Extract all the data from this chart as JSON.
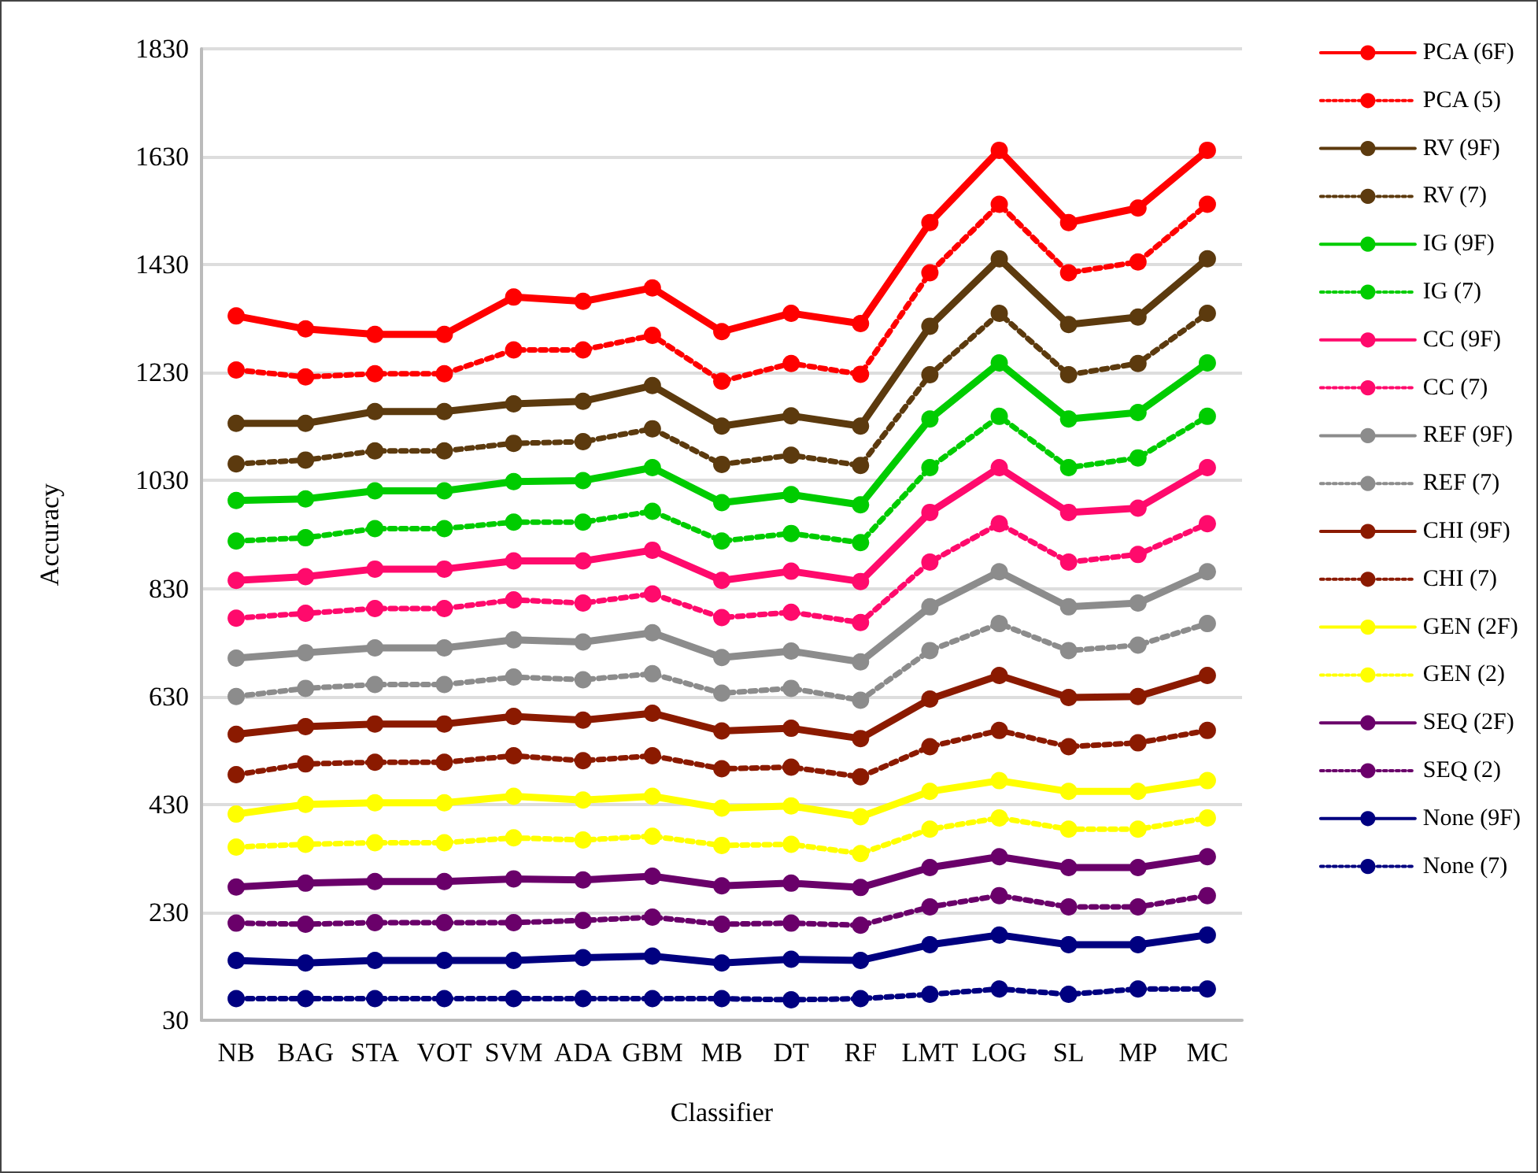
{
  "chart_data": {
    "type": "line",
    "xlabel": "Classifier",
    "ylabel": "Accuracy",
    "categories": [
      "NB",
      "BAG",
      "STA",
      "VOT",
      "SVM",
      "ADA",
      "GBM",
      "MB",
      "DT",
      "RF",
      "LMT",
      "LOG",
      "SL",
      "MP",
      "MC"
    ],
    "ylim": [
      30,
      1830
    ],
    "yticks": [
      30,
      230,
      430,
      630,
      830,
      1030,
      1230,
      1430,
      1630,
      1830
    ],
    "grid": "y",
    "legend": "right",
    "marker": "circle",
    "series": [
      {
        "name": "PCA (6F)",
        "color": "#ff0000",
        "line_style": "solid",
        "values": [
          1335,
          1311,
          1301,
          1301,
          1370,
          1362,
          1387,
          1306,
          1340,
          1321,
          1508,
          1642,
          1508,
          1535,
          1642
        ]
      },
      {
        "name": "PCA (5)",
        "color": "#ff0000",
        "line_style": "dotted",
        "values": [
          1235,
          1222,
          1228,
          1228,
          1272,
          1272,
          1299,
          1214,
          1247,
          1227,
          1415,
          1542,
          1415,
          1435,
          1542
        ]
      },
      {
        "name": "RV (9F)",
        "color": "#5c3a0e",
        "line_style": "solid",
        "values": [
          1136,
          1136,
          1158,
          1158,
          1172,
          1177,
          1206,
          1131,
          1150,
          1131,
          1316,
          1441,
          1319,
          1333,
          1441
        ]
      },
      {
        "name": "RV (7)",
        "color": "#5c3a0e",
        "line_style": "dotted",
        "values": [
          1061,
          1068,
          1085,
          1085,
          1099,
          1102,
          1126,
          1060,
          1077,
          1058,
          1226,
          1340,
          1226,
          1247,
          1340
        ]
      },
      {
        "name": "IG (9F)",
        "color": "#00cc00",
        "line_style": "solid",
        "values": [
          993,
          996,
          1011,
          1011,
          1028,
          1030,
          1054,
          989,
          1004,
          985,
          1144,
          1248,
          1144,
          1156,
          1248
        ]
      },
      {
        "name": "IG (7)",
        "color": "#00cc00",
        "line_style": "dotted",
        "values": [
          918,
          924,
          941,
          941,
          953,
          953,
          973,
          918,
          932,
          915,
          1054,
          1149,
          1054,
          1072,
          1149
        ]
      },
      {
        "name": "CC (9F)",
        "color": "#ff0a6c",
        "line_style": "solid",
        "values": [
          845,
          852,
          866,
          866,
          881,
          881,
          901,
          845,
          862,
          843,
          971,
          1054,
          971,
          979,
          1054
        ]
      },
      {
        "name": "CC (7)",
        "color": "#ff0a6c",
        "line_style": "dotted",
        "values": [
          775,
          784,
          793,
          793,
          809,
          803,
          820,
          776,
          786,
          767,
          879,
          950,
          879,
          893,
          950
        ]
      },
      {
        "name": "REF (9F)",
        "color": "#8c8c8c",
        "line_style": "solid",
        "values": [
          701,
          711,
          720,
          720,
          735,
          731,
          748,
          702,
          714,
          694,
          796,
          861,
          796,
          803,
          861
        ]
      },
      {
        "name": "REF (7)",
        "color": "#8c8c8c",
        "line_style": "dotted",
        "values": [
          630,
          645,
          652,
          652,
          666,
          661,
          672,
          636,
          645,
          623,
          715,
          765,
          715,
          725,
          765
        ]
      },
      {
        "name": "CHI (9F)",
        "color": "#8b1a00",
        "line_style": "solid",
        "values": [
          560,
          574,
          579,
          579,
          593,
          586,
          599,
          566,
          571,
          552,
          625,
          669,
          628,
          630,
          669
        ]
      },
      {
        "name": "CHI (7)",
        "color": "#8b1a00",
        "line_style": "dotted",
        "values": [
          485,
          505,
          508,
          508,
          520,
          511,
          520,
          496,
          499,
          481,
          537,
          567,
          537,
          544,
          567
        ]
      },
      {
        "name": "GEN (2F)",
        "color": "#ffff00",
        "line_style": "solid",
        "values": [
          412,
          430,
          433,
          433,
          445,
          438,
          445,
          423,
          427,
          407,
          454,
          474,
          454,
          454,
          474
        ]
      },
      {
        "name": "GEN (2)",
        "color": "#ffff00",
        "line_style": "dotted",
        "values": [
          351,
          356,
          359,
          359,
          368,
          364,
          371,
          354,
          356,
          339,
          384,
          405,
          384,
          384,
          405
        ]
      },
      {
        "name": "SEQ (2F)",
        "color": "#6a006a",
        "line_style": "solid",
        "values": [
          277,
          284,
          287,
          287,
          292,
          290,
          297,
          279,
          284,
          276,
          313,
          333,
          313,
          313,
          333
        ]
      },
      {
        "name": "SEQ (2)",
        "color": "#6a006a",
        "line_style": "dotted",
        "values": [
          210,
          208,
          211,
          211,
          211,
          215,
          221,
          208,
          210,
          206,
          240,
          261,
          240,
          240,
          261
        ]
      },
      {
        "name": "None (9F)",
        "color": "#000080",
        "line_style": "solid",
        "values": [
          141,
          136,
          141,
          141,
          141,
          146,
          149,
          136,
          143,
          141,
          170,
          188,
          170,
          170,
          188
        ]
      },
      {
        "name": "None (7)",
        "color": "#000080",
        "line_style": "dotted",
        "values": [
          70,
          70,
          70,
          70,
          70,
          70,
          70,
          70,
          68,
          70,
          78,
          88,
          78,
          88,
          88
        ]
      }
    ]
  }
}
